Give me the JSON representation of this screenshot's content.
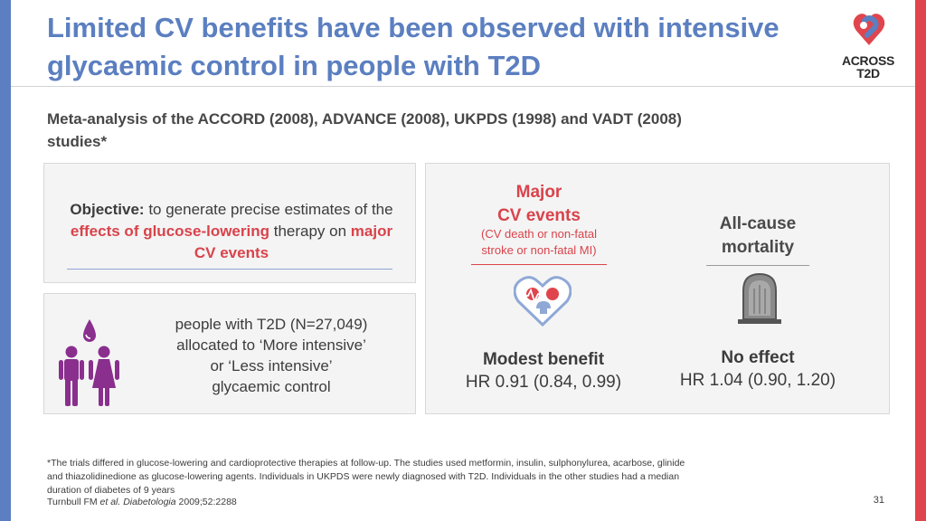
{
  "slide": {
    "title_line1": "Limited CV benefits have been observed with intensive",
    "title_line2": "glycaemic control in people with T2D",
    "subtitle_line1": "Meta-analysis of the ACCORD (2008), ADVANCE (2008), UKPDS (1998) and VADT (2008)",
    "subtitle_line2": "studies*",
    "page_number": "31"
  },
  "logo": {
    "line1": "ACROSS",
    "line2": "T2D"
  },
  "objective": {
    "label": "Objective:",
    "text_1": " to generate precise estimates of the ",
    "highlight_1": "effects of glucose-lowering",
    "text_2": " therapy on ",
    "highlight_2": "major CV events"
  },
  "population": {
    "line1": "people with T2D (N=27,049)",
    "line2": "allocated to ‘More intensive’",
    "line3": "or ‘Less intensive’",
    "line4": "glycaemic control"
  },
  "outcomes": {
    "major_cv": {
      "title_line1": "Major",
      "title_line2": "CV events",
      "sub_line1": "(CV death or non-fatal",
      "sub_line2": "stroke or non-fatal MI)",
      "result": "Modest benefit",
      "hr": "HR 0.91 (0.84, 0.99)"
    },
    "all_cause": {
      "title_line1": "All-cause",
      "title_line2": "mortality",
      "result": "No effect",
      "hr": "HR 1.04 (0.90, 1.20)"
    }
  },
  "footnote": {
    "line1": "*The trials differed in glucose-lowering and cardioprotective therapies at follow-up. The studies used metformin, insulin, sulphonylurea, acarbose, glinide",
    "line2": "and thiazolidinedione as glucose-lowering agents. Individuals in UKPDS were newly diagnosed with T2D. Individuals in the other studies had a median",
    "line3": "duration of diabetes of 9 years",
    "citation_author": "Turnbull FM ",
    "citation_journal": "et al. Diabetologia",
    "citation_ref": " 2009;52:2288"
  },
  "colors": {
    "blue": "#5b7fc0",
    "red": "#d9434b",
    "purple": "#8a2f8e"
  },
  "icons": [
    "across-t2d-logo-icon",
    "people-icon",
    "blood-drop-icon",
    "heart-brain-icon",
    "tombstone-icon"
  ]
}
